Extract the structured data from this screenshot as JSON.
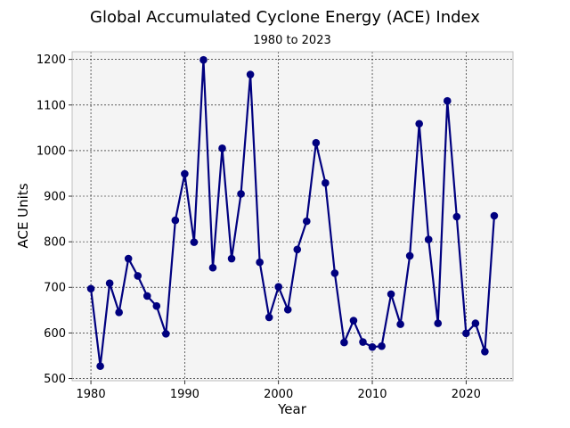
{
  "chart_data": {
    "type": "line",
    "title": "Global Accumulated Cyclone Energy (ACE) Index",
    "subtitle": "1980 to 2023",
    "xlabel": "Year",
    "ylabel": "ACE Units",
    "xlim": [
      1978,
      2025
    ],
    "ylim": [
      495,
      1217
    ],
    "xticks": [
      1980,
      1990,
      2000,
      2010,
      2020
    ],
    "yticks": [
      500,
      600,
      700,
      800,
      900,
      1000,
      1100,
      1200
    ],
    "grid": true,
    "legend": "none",
    "colors": {
      "line": "#00007f",
      "marker": "#00007f",
      "plot_background": "#f4f4f4",
      "grid": "#000000",
      "frame": "#bfbfbf"
    },
    "series": [
      {
        "x": [
          1980,
          1981,
          1982,
          1983,
          1984,
          1985,
          1986,
          1987,
          1988,
          1989,
          1990,
          1991,
          1992,
          1993,
          1994,
          1995,
          1996,
          1997,
          1998,
          1999,
          2000,
          2001,
          2002,
          2003,
          2004,
          2005,
          2006,
          2007,
          2008,
          2009,
          2010,
          2011,
          2012,
          2013,
          2014,
          2015,
          2016,
          2017,
          2018,
          2019,
          2020,
          2021,
          2022,
          2023
        ],
        "values": [
          697,
          527,
          709,
          645,
          763,
          725,
          681,
          659,
          598,
          847,
          949,
          799,
          1199,
          743,
          1005,
          763,
          905,
          1167,
          755,
          634,
          701,
          651,
          783,
          845,
          1017,
          929,
          731,
          579,
          627,
          580,
          569,
          571,
          685,
          619,
          769,
          1059,
          805,
          621,
          1109,
          855,
          599,
          621,
          559,
          857
        ]
      }
    ]
  }
}
